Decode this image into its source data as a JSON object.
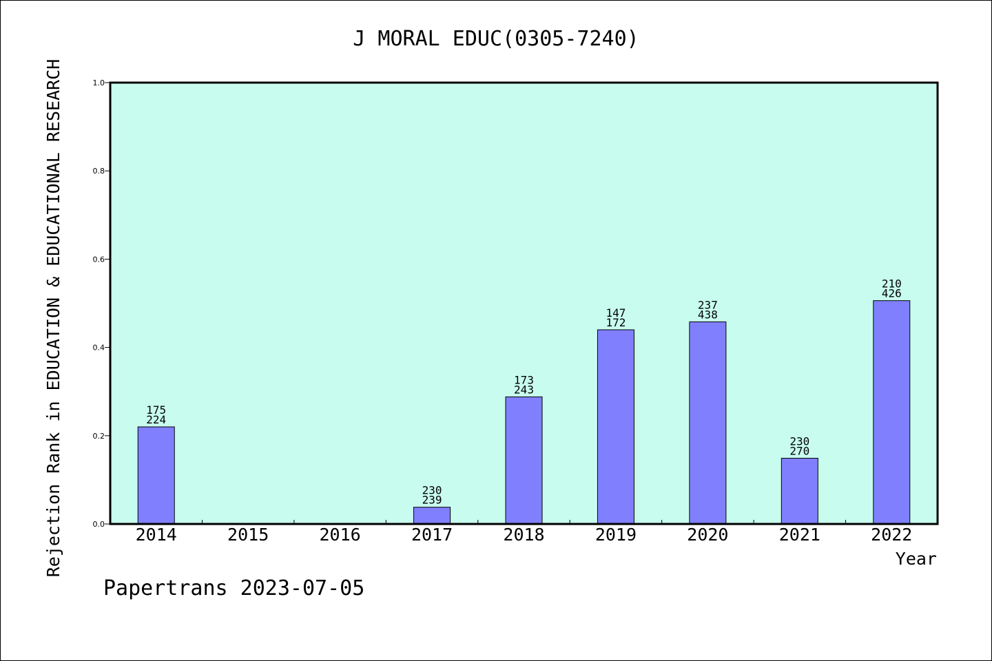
{
  "chart_data": {
    "type": "bar",
    "title": "J MORAL EDUC(0305-7240)",
    "xlabel": "Year",
    "ylabel": "Rejection Rank in EDUCATION & EDUCATIONAL RESEARCH",
    "ylim": [
      0,
      1.0
    ],
    "yticks": [
      "0.0",
      "0.2",
      "0.4",
      "0.6",
      "0.8",
      "1.0"
    ],
    "categories": [
      "2014",
      "2015",
      "2016",
      "2017",
      "2018",
      "2019",
      "2020",
      "2021",
      "2022"
    ],
    "values": [
      0.22,
      null,
      null,
      0.038,
      0.288,
      0.44,
      0.458,
      0.149,
      0.506
    ],
    "label_top": [
      "175",
      "",
      "",
      "230",
      "173",
      "147",
      "237",
      "230",
      "210"
    ],
    "label_bottom": [
      "224",
      "",
      "",
      "239",
      "243",
      "172",
      "438",
      "270",
      "426"
    ],
    "colors": {
      "plot_bg": "#c8fcee",
      "bar": "#8080ff"
    }
  },
  "footer": {
    "text": "Papertrans 2023-07-05"
  }
}
